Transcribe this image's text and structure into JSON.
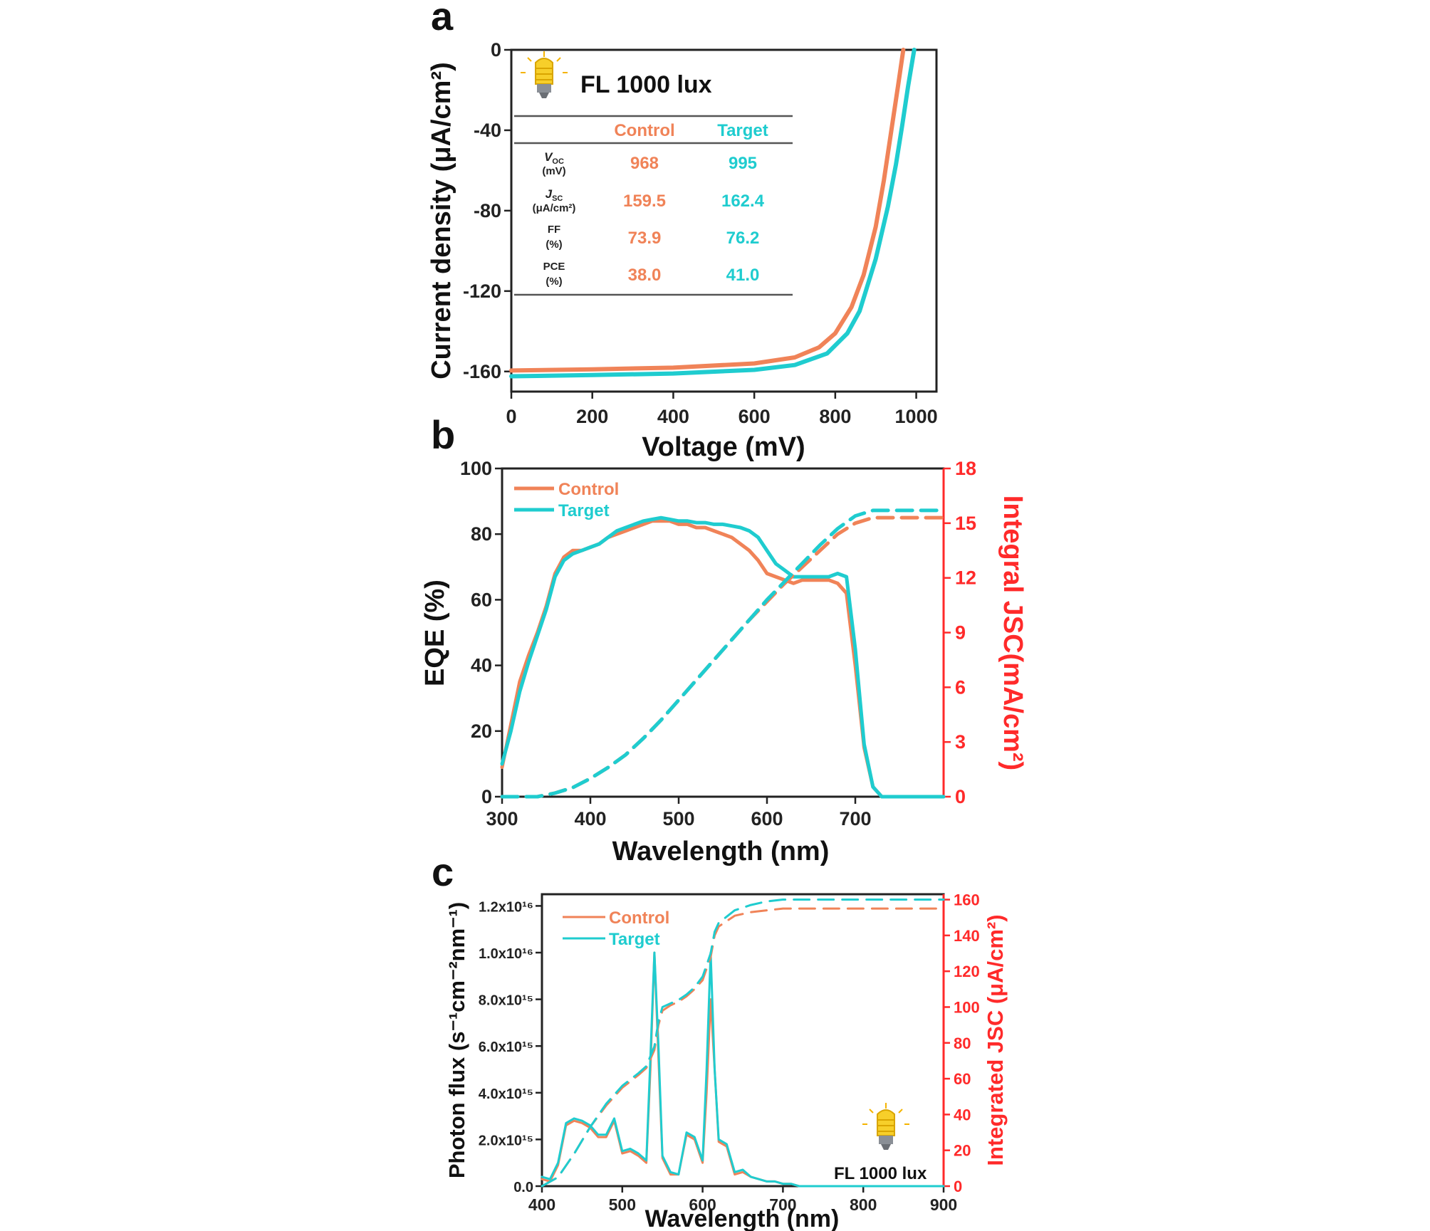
{
  "colors": {
    "control": "#f08358",
    "target": "#1fcccf",
    "axis_right": "#ff2a2a"
  },
  "panels": {
    "a": "a",
    "b": "b",
    "c": "c"
  },
  "chart_data": [
    {
      "id": "a",
      "type": "line",
      "title": "FL 1000 lux",
      "xlabel": "Voltage (mV)",
      "ylabel": "Current density (μA/cm²)",
      "xlim": [
        0,
        1050
      ],
      "ylim": [
        -170,
        0
      ],
      "xticks": [
        0,
        200,
        400,
        600,
        800,
        1000
      ],
      "yticks": [
        0,
        -40,
        -80,
        -120,
        -160
      ],
      "series": [
        {
          "name": "Control",
          "x": [
            0,
            200,
            400,
            600,
            700,
            760,
            800,
            840,
            870,
            900,
            920,
            940,
            955,
            968
          ],
          "y": [
            -159.5,
            -158.9,
            -158.1,
            -156,
            -153,
            -148,
            -141,
            -128,
            -112,
            -88,
            -65,
            -38,
            -18,
            0
          ]
        },
        {
          "name": "Target",
          "x": [
            0,
            200,
            400,
            600,
            700,
            780,
            830,
            860,
            900,
            930,
            950,
            965,
            980,
            995
          ],
          "y": [
            -162.4,
            -161.8,
            -161,
            -159.2,
            -156.8,
            -151,
            -141,
            -130,
            -104,
            -78,
            -57,
            -38,
            -18,
            0
          ]
        }
      ],
      "table": {
        "columns": [
          "Control",
          "Target"
        ],
        "rows": [
          {
            "name": "VOC",
            "unit": "(mV)",
            "control": "968",
            "target": "995"
          },
          {
            "name": "JSC",
            "unit": "(μA/cm²)",
            "control": "159.5",
            "target": "162.4"
          },
          {
            "name": "FF",
            "unit": "(%)",
            "control": "73.9",
            "target": "76.2"
          },
          {
            "name": "PCE",
            "unit": "(%)",
            "control": "38.0",
            "target": "41.0"
          }
        ]
      }
    },
    {
      "id": "b",
      "type": "line",
      "xlabel": "Wavelength (nm)",
      "ylabel": "EQE (%)",
      "y2label": "Integral JSC(mA/cm²)",
      "xlim": [
        300,
        800
      ],
      "ylim": [
        0,
        100
      ],
      "y2lim": [
        0,
        18
      ],
      "xticks": [
        300,
        400,
        500,
        600,
        700
      ],
      "yticks": [
        0,
        20,
        40,
        60,
        80,
        100
      ],
      "y2ticks": [
        0,
        3,
        6,
        9,
        12,
        15,
        18
      ],
      "legend": [
        "Control",
        "Target"
      ],
      "series": [
        {
          "name": "Control EQE",
          "axis": "left",
          "x": [
            300,
            310,
            320,
            330,
            340,
            350,
            360,
            370,
            380,
            390,
            400,
            410,
            420,
            430,
            440,
            450,
            460,
            470,
            480,
            490,
            500,
            510,
            520,
            530,
            540,
            550,
            560,
            570,
            580,
            590,
            600,
            610,
            620,
            630,
            640,
            650,
            660,
            670,
            680,
            690,
            700,
            710,
            720,
            730,
            740,
            750,
            760,
            770,
            780,
            790,
            800
          ],
          "y": [
            9,
            22,
            35,
            43,
            50,
            58,
            68,
            73,
            75,
            75,
            76,
            77,
            79,
            80,
            81,
            82,
            83,
            84,
            84,
            84,
            83,
            83,
            82,
            82,
            81,
            80,
            79,
            77,
            75,
            72,
            68,
            67,
            66,
            65,
            66,
            66,
            66,
            66,
            65,
            62,
            40,
            15,
            3,
            0,
            0,
            0,
            0,
            0,
            0,
            0,
            0
          ]
        },
        {
          "name": "Target EQE",
          "axis": "left",
          "x": [
            300,
            310,
            320,
            330,
            340,
            350,
            360,
            370,
            380,
            390,
            400,
            410,
            420,
            430,
            440,
            450,
            460,
            470,
            480,
            490,
            500,
            510,
            520,
            530,
            540,
            550,
            560,
            570,
            580,
            590,
            600,
            610,
            620,
            630,
            640,
            650,
            660,
            670,
            680,
            690,
            700,
            710,
            720,
            730,
            740,
            750,
            760,
            770,
            780,
            790,
            800
          ],
          "y": [
            10,
            20,
            32,
            41,
            49,
            57,
            67,
            72,
            74,
            75,
            76,
            77,
            79,
            81,
            82,
            83,
            84,
            84.5,
            85,
            84.5,
            84,
            84,
            83.5,
            83.5,
            83,
            83,
            82.5,
            82,
            81,
            79,
            75,
            71,
            69,
            67,
            67,
            67,
            67,
            67,
            68,
            67,
            45,
            16,
            3,
            0,
            0,
            0,
            0,
            0,
            0,
            0,
            0
          ]
        },
        {
          "name": "Control Integral JSC",
          "axis": "right",
          "dashed": true,
          "x": [
            300,
            340,
            360,
            380,
            400,
            420,
            440,
            460,
            480,
            500,
            520,
            540,
            560,
            580,
            600,
            620,
            640,
            660,
            680,
            700,
            720,
            740,
            760,
            780,
            800
          ],
          "y": [
            0,
            0,
            0.2,
            0.5,
            1,
            1.6,
            2.3,
            3.2,
            4.2,
            5.3,
            6.4,
            7.5,
            8.6,
            9.7,
            10.7,
            11.7,
            12.6,
            13.5,
            14.4,
            15,
            15.3,
            15.3,
            15.3,
            15.3,
            15.3
          ]
        },
        {
          "name": "Target Integral JSC",
          "axis": "right",
          "dashed": true,
          "x": [
            300,
            340,
            360,
            380,
            400,
            420,
            440,
            460,
            480,
            500,
            520,
            540,
            560,
            580,
            600,
            620,
            640,
            660,
            680,
            700,
            720,
            740,
            760,
            780,
            800
          ],
          "y": [
            0,
            0,
            0.2,
            0.5,
            1,
            1.6,
            2.3,
            3.2,
            4.2,
            5.3,
            6.4,
            7.5,
            8.6,
            9.7,
            10.8,
            11.8,
            12.8,
            13.8,
            14.7,
            15.4,
            15.7,
            15.7,
            15.7,
            15.7,
            15.7
          ]
        }
      ]
    },
    {
      "id": "c",
      "type": "line",
      "xlabel": "Wavelength (nm)",
      "ylabel": "Photon flux (s⁻¹cm⁻²nm⁻¹)",
      "y2label": "Integrated JSC (μA/cm²)",
      "annotation": "FL 1000 lux",
      "xlim": [
        400,
        900
      ],
      "ylim": [
        0,
        1.25e+16
      ],
      "y2lim": [
        0,
        163
      ],
      "xticks": [
        400,
        500,
        600,
        700,
        800,
        900
      ],
      "ytick_values": [
        0,
        2000000000000000.0,
        4000000000000000.0,
        6000000000000000.0,
        8000000000000000.0,
        1e+16,
        1.2e+16
      ],
      "ytick_labels": [
        "0.0",
        "2.0x10¹⁵",
        "4.0x10¹⁵",
        "6.0x10¹⁵",
        "8.0x10¹⁵",
        "1.0x10¹⁶",
        "1.2x10¹⁶"
      ],
      "y2ticks": [
        0,
        20,
        40,
        60,
        80,
        100,
        120,
        140,
        160
      ],
      "legend": [
        "Control",
        "Target"
      ],
      "series": [
        {
          "name": "Control flux",
          "axis": "left",
          "x": [
            400,
            410,
            420,
            430,
            440,
            450,
            460,
            470,
            480,
            490,
            500,
            510,
            520,
            530,
            535,
            540,
            545,
            550,
            560,
            570,
            580,
            590,
            600,
            605,
            610,
            615,
            620,
            630,
            640,
            650,
            660,
            670,
            680,
            690,
            700,
            710,
            720,
            730,
            800,
            900
          ],
          "y": [
            300000000000000.0,
            200000000000000.0,
            900000000000000.0,
            2600000000000000.0,
            2800000000000000.0,
            2700000000000000.0,
            2500000000000000.0,
            2100000000000000.0,
            2100000000000000.0,
            2800000000000000.0,
            1400000000000000.0,
            1500000000000000.0,
            1300000000000000.0,
            1000000000000000.0,
            5000000000000000.0,
            1e+16,
            5500000000000000.0,
            1200000000000000.0,
            500000000000000.0,
            500000000000000.0,
            2200000000000000.0,
            2000000000000000.0,
            1000000000000000.0,
            4000000000000000.0,
            8000000000000000.0,
            5000000000000000.0,
            1900000000000000.0,
            1700000000000000.0,
            500000000000000.0,
            600000000000000.0,
            400000000000000.0,
            300000000000000.0,
            200000000000000.0,
            200000000000000.0,
            100000000000000.0,
            100000000000000.0,
            0,
            0,
            0,
            0
          ]
        },
        {
          "name": "Target flux",
          "axis": "left",
          "x": [
            400,
            410,
            420,
            430,
            440,
            450,
            460,
            470,
            480,
            490,
            500,
            510,
            520,
            530,
            535,
            540,
            545,
            550,
            560,
            570,
            580,
            590,
            600,
            605,
            610,
            615,
            620,
            630,
            640,
            650,
            660,
            670,
            680,
            690,
            700,
            710,
            720,
            730,
            800,
            900
          ],
          "y": [
            400000000000000.0,
            300000000000000.0,
            1000000000000000.0,
            2700000000000000.0,
            2900000000000000.0,
            2800000000000000.0,
            2600000000000000.0,
            2200000000000000.0,
            2200000000000000.0,
            2900000000000000.0,
            1500000000000000.0,
            1600000000000000.0,
            1400000000000000.0,
            1100000000000000.0,
            5500000000000000.0,
            1e+16,
            6000000000000000.0,
            1300000000000000.0,
            600000000000000.0,
            500000000000000.0,
            2300000000000000.0,
            2100000000000000.0,
            1100000000000000.0,
            5000000000000000.0,
            1e+16,
            5000000000000000.0,
            2000000000000000.0,
            1800000000000000.0,
            600000000000000.0,
            700000000000000.0,
            400000000000000.0,
            300000000000000.0,
            200000000000000.0,
            200000000000000.0,
            100000000000000.0,
            100000000000000.0,
            0,
            0,
            0,
            0
          ]
        },
        {
          "name": "Control integrated JSC",
          "axis": "right",
          "dashed": true,
          "x": [
            400,
            420,
            440,
            460,
            480,
            500,
            520,
            530,
            540,
            545,
            550,
            560,
            570,
            580,
            590,
            600,
            610,
            615,
            620,
            640,
            660,
            680,
            700,
            750,
            800,
            900
          ],
          "y": [
            0,
            5,
            18,
            33,
            45,
            55,
            62,
            66,
            76,
            90,
            98,
            101,
            103,
            106,
            110,
            115,
            128,
            140,
            145,
            151,
            153,
            154,
            155,
            155,
            155,
            155
          ]
        },
        {
          "name": "Target integrated JSC",
          "axis": "right",
          "dashed": true,
          "x": [
            400,
            420,
            440,
            460,
            480,
            500,
            520,
            530,
            540,
            545,
            550,
            560,
            570,
            580,
            590,
            600,
            610,
            615,
            620,
            640,
            660,
            680,
            700,
            750,
            800,
            900
          ],
          "y": [
            0,
            5,
            18,
            33,
            46,
            56,
            63,
            67,
            78,
            92,
            100,
            102,
            104,
            107,
            111,
            117,
            130,
            142,
            147,
            154,
            157,
            159,
            160,
            160,
            160,
            160
          ]
        }
      ]
    }
  ]
}
